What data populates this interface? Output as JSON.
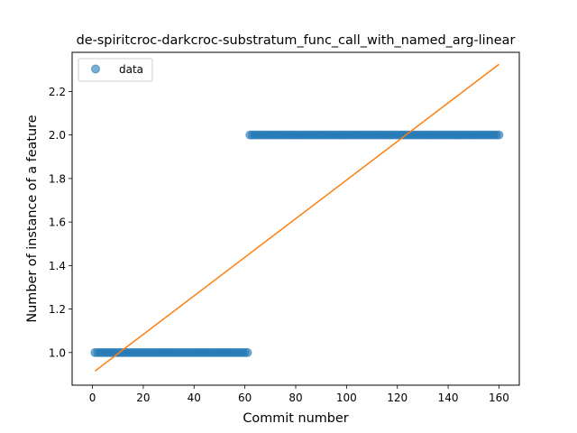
{
  "chart_data": {
    "type": "scatter",
    "title": "de-spiritcroc-darkcroc-substratum_func_call_with_named_arg-linear",
    "xlabel": "Commit number",
    "ylabel": "Number of instance of a feature",
    "xlim": [
      -8,
      168
    ],
    "ylim": [
      0.85,
      2.38
    ],
    "xticks": [
      0,
      20,
      40,
      60,
      80,
      100,
      120,
      140,
      160
    ],
    "yticks": [
      1.0,
      1.2,
      1.4,
      1.6,
      1.8,
      2.0,
      2.2
    ],
    "ytick_labels": [
      "1.0",
      "1.2",
      "1.4",
      "1.6",
      "1.8",
      "2.0",
      "2.2"
    ],
    "legend": {
      "position": "top-left",
      "entries": [
        "data"
      ]
    },
    "series": [
      {
        "name": "data",
        "kind": "scatter",
        "color": "#1f77b4",
        "segments": [
          {
            "x_start": 1,
            "x_end": 61,
            "y": 1.0
          },
          {
            "x_start": 62,
            "x_end": 160,
            "y": 2.0
          }
        ]
      },
      {
        "kind": "line",
        "color": "#ff7f0e",
        "x": [
          1,
          160
        ],
        "y": [
          0.915,
          2.325
        ]
      }
    ]
  }
}
